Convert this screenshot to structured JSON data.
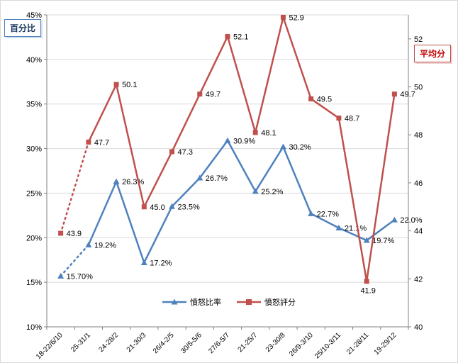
{
  "chart_data": {
    "type": "line",
    "title": "",
    "categories": [
      "18-22/6/10",
      "25-31/1",
      "24-28/2",
      "21-30/3",
      "26/4-2/5",
      "30/5-5/6",
      "27/6-5/7",
      "21-25/7",
      "23-30/8",
      "26/9-3/10",
      "25/10-3/11",
      "21-28/11",
      "19-29/12"
    ],
    "series": [
      {
        "name": "憤怒比率",
        "axis": "left",
        "color": "#4F81BD",
        "marker": "triangle",
        "values": [
          15.7,
          19.2,
          26.3,
          17.2,
          23.5,
          26.7,
          30.9,
          25.2,
          30.2,
          22.7,
          21.1,
          19.7,
          22.0
        ],
        "labels": [
          "15.70%",
          "19.2%",
          "26.3%",
          "17.2%",
          "23.5%",
          "26.7%",
          "30.9%",
          "25.2%",
          "30.2%",
          "22.7%",
          "21.1%",
          "19.7%",
          "22.0%"
        ]
      },
      {
        "name": "憤怒評分",
        "axis": "right",
        "color": "#C0504D",
        "marker": "square",
        "values": [
          43.9,
          47.7,
          50.1,
          45.0,
          47.3,
          49.7,
          52.1,
          48.1,
          52.9,
          49.5,
          48.7,
          41.9,
          49.7
        ],
        "labels": [
          "43.9",
          "47.7",
          "50.1",
          "45.0",
          "47.3",
          "49.7",
          "52.1",
          "48.1",
          "52.9",
          "49.5",
          "48.7",
          "41.9",
          "49.7"
        ]
      }
    ],
    "left_axis": {
      "title": "百分比",
      "min": 10,
      "max": 45,
      "step": 5,
      "suffix": "%",
      "tick_labels": [
        "10%",
        "15%",
        "20%",
        "25%",
        "30%",
        "35%",
        "40%",
        "45%"
      ]
    },
    "right_axis": {
      "title": "平均分",
      "min": 40,
      "max": 53,
      "step": 2,
      "tick_max": 52,
      "tick_labels": [
        "40",
        "42",
        "44",
        "46",
        "48",
        "50",
        "52"
      ]
    },
    "grid": true,
    "dotted_first_segment": true,
    "legend_position": "bottom-center",
    "colors": {
      "grid": "#d9d9d9",
      "axis": "#808080",
      "blue_series": "#4F81BD",
      "red_series": "#C0504D",
      "left_title_text": "#17375E",
      "right_title_text": "#C00000"
    }
  }
}
